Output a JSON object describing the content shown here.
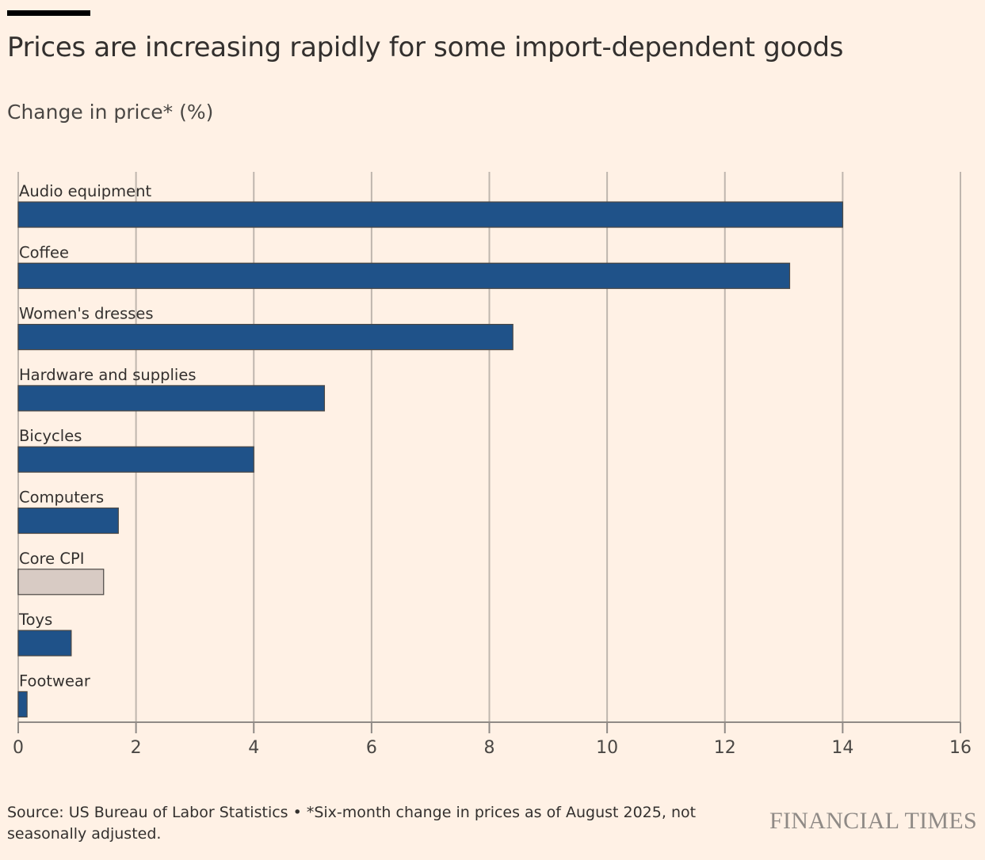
{
  "header": {
    "title": "Prices are increasing rapidly for some import-dependent goods",
    "subtitle": "Change in price* (%)"
  },
  "chart_data": {
    "type": "bar",
    "orientation": "horizontal",
    "title": "Prices are increasing rapidly for some import-dependent goods",
    "xlabel": "",
    "ylabel": "Change in price* (%)",
    "categories": [
      "Audio equipment",
      "Coffee",
      "Women's dresses",
      "Hardware and supplies",
      "Bicycles",
      "Computers",
      "Core CPI",
      "Toys",
      "Footwear"
    ],
    "values": [
      14.0,
      13.1,
      8.4,
      5.2,
      4.0,
      1.7,
      1.45,
      0.9,
      0.15
    ],
    "highlight": {
      "Core CPI": "#d8cbc4"
    },
    "bar_color": "#1f5289",
    "xlim": [
      0,
      16
    ],
    "xticks": [
      "0",
      "2",
      "4",
      "6",
      "8",
      "10",
      "12",
      "14",
      "16"
    ],
    "grid": true
  },
  "footer": {
    "source": "Source: US Bureau of Labor Statistics • *Six-month change in prices as of August 2025, not seasonally adjusted.",
    "logo": "FINANCIAL TIMES"
  }
}
